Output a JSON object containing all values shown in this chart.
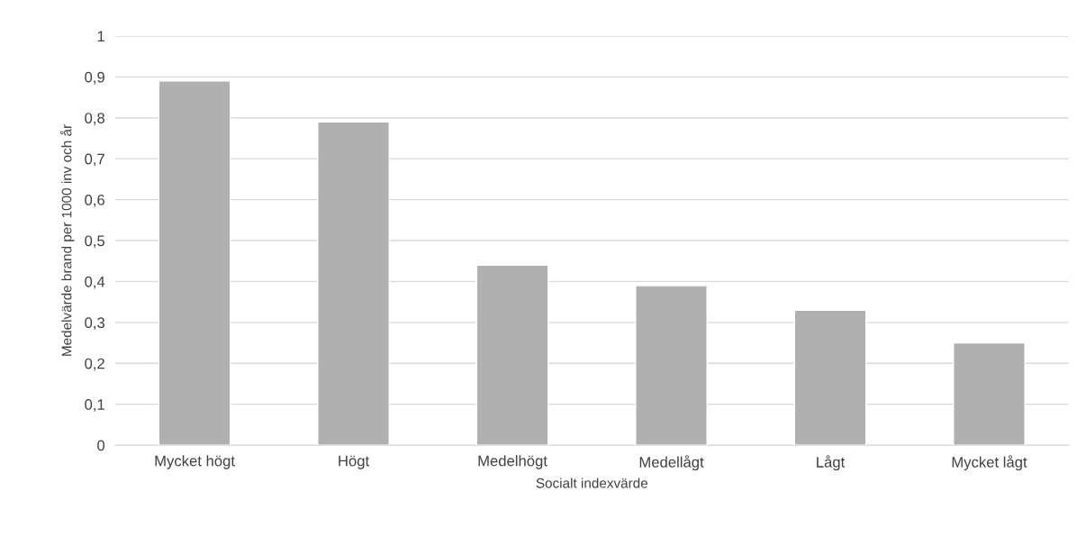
{
  "chart_data": {
    "type": "bar",
    "xlabel": "Socialt indexvärde",
    "ylabel": "Medelvärde brand per 1000 inv och år",
    "categories": [
      "Mycket högt",
      "Högt",
      "Medelhögt",
      "Medellågt",
      "Lågt",
      "Mycket lågt"
    ],
    "values": [
      0.89,
      0.79,
      0.44,
      0.39,
      0.33,
      0.25
    ],
    "color": "#b0b0b0",
    "ylim": [
      0,
      1
    ],
    "yticks": [
      0,
      {
        "value": 0.1,
        "label": "0,1"
      },
      {
        "value": 0.2,
        "label": "0,2"
      },
      {
        "value": 0.3,
        "label": "0,3"
      },
      {
        "value": 0.4,
        "label": "0,4"
      },
      {
        "value": 0.5,
        "label": "0,5"
      },
      {
        "value": 0.6,
        "label": "0,6"
      },
      {
        "value": 0.7,
        "label": "0,7"
      },
      {
        "value": 0.8,
        "label": "0,8"
      },
      {
        "value": 0.9,
        "label": "0,9"
      },
      1
    ],
    "grid": "y"
  }
}
